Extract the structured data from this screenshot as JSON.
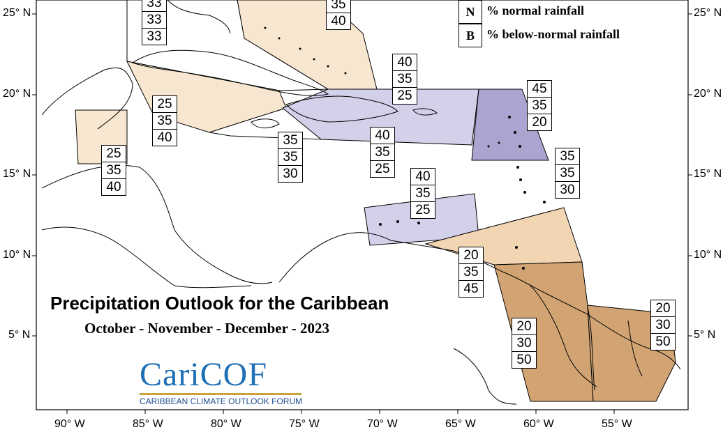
{
  "title": "Precipitation Outlook for the Caribbean",
  "subtitle": "October - November - December - 2023",
  "legend": [
    {
      "key": "N",
      "text": "% normal rainfall"
    },
    {
      "key": "B",
      "text": "% below-normal rainfall"
    }
  ],
  "logo": {
    "name": "CariCOF",
    "tagline": "CARIBBEAN CLIMATE OUTLOOK FORUM"
  },
  "lat_labels": [
    "25° N",
    "20° N",
    "15° N",
    "10° N",
    "5° N"
  ],
  "lon_labels": [
    "90° W",
    "85° W",
    "80° W",
    "75° W",
    "70° W",
    "65° W",
    "60° W",
    "55° W"
  ],
  "colors": {
    "light_orange": "#f7e6d0",
    "light_purple": "#d3d1ea",
    "medium_purple": "#a9a4d0",
    "brown": "#d2a474",
    "logo_blue": "#1f6fb5"
  },
  "probability_boxes": [
    {
      "values": [
        "33",
        "33",
        "33"
      ]
    },
    {
      "values": [
        "35",
        "40"
      ]
    },
    {
      "values": [
        "40",
        "35",
        "25"
      ]
    },
    {
      "values": [
        "45",
        "35",
        "20"
      ]
    },
    {
      "values": [
        "25",
        "35",
        "40"
      ]
    },
    {
      "values": [
        "25",
        "35",
        "40"
      ]
    },
    {
      "values": [
        "35",
        "35",
        "30"
      ]
    },
    {
      "values": [
        "40",
        "35",
        "25"
      ]
    },
    {
      "values": [
        "40",
        "35",
        "25"
      ]
    },
    {
      "values": [
        "35",
        "35",
        "30"
      ]
    },
    {
      "values": [
        "20",
        "35",
        "45"
      ]
    },
    {
      "values": [
        "20",
        "30",
        "50"
      ]
    },
    {
      "values": [
        "20",
        "30",
        "50"
      ]
    }
  ]
}
